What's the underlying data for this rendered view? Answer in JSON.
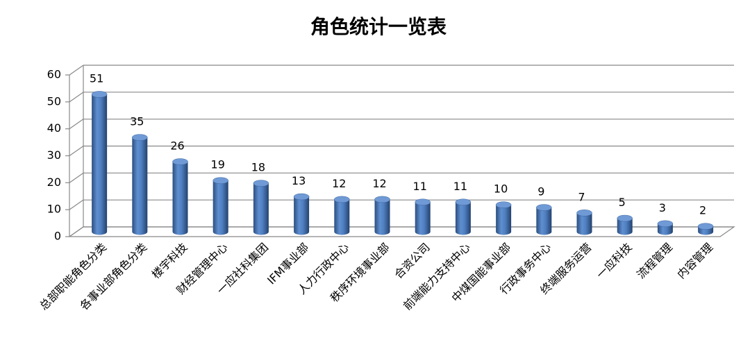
{
  "chart_data": {
    "type": "bar",
    "title": "角色统计一览表",
    "categories": [
      "总部职能角色分类",
      "各事业部角色分类",
      "楼宇科技",
      "财经管理中心",
      "一应社科集团",
      "IFM事业部",
      "人力行政中心",
      "秩序环境事业部",
      "合资公司",
      "前端能力支持中心",
      "中煤国能事业部",
      "行政事务中心",
      "终端服务运营",
      "一应科技",
      "流程管理",
      "内容管理"
    ],
    "values": [
      51,
      35,
      26,
      19,
      18,
      13,
      12,
      12,
      11,
      11,
      10,
      9,
      7,
      5,
      3,
      2
    ],
    "color": "#4f81bd",
    "ylim": [
      0,
      60
    ],
    "yticks": [
      0,
      10,
      20,
      30,
      40,
      50,
      60
    ],
    "grid": true
  }
}
